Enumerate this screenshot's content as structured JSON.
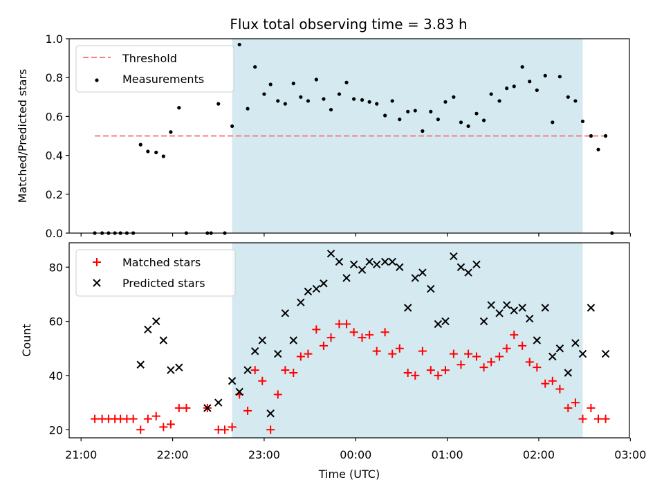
{
  "figure": {
    "title": "Flux total observing time = 3.83 h",
    "xlabel": "Time (UTC)",
    "x_unit": "hours UTC (values beyond 24 fall after midnight)",
    "x_ticks": [
      {
        "value": 21,
        "label": "21:00"
      },
      {
        "value": 22,
        "label": "22:00"
      },
      {
        "value": 23,
        "label": "23:00"
      },
      {
        "value": 24,
        "label": "00:00"
      },
      {
        "value": 25,
        "label": "01:00"
      },
      {
        "value": 26,
        "label": "02:00"
      },
      {
        "value": 27,
        "label": "03:00"
      }
    ],
    "xlim": [
      20.87,
      26.99
    ],
    "observing_window": [
      22.65,
      26.48
    ],
    "colors": {
      "shade": "#d4eaf0",
      "threshold": "#f47f7f",
      "measurements": "#000000",
      "matched": "#ff0000",
      "predicted": "#000000"
    }
  },
  "chart_data": [
    {
      "type": "scatter",
      "panel": "top",
      "ylabel": "Matched/Predicted stars",
      "ylim": [
        0,
        1.0
      ],
      "y_ticks": [
        "0.0",
        "0.2",
        "0.4",
        "0.6",
        "0.8",
        "1.0"
      ],
      "legend_position": "top-left",
      "threshold": {
        "name": "Threshold",
        "value": 0.5,
        "x_range": [
          21.15,
          26.75
        ]
      },
      "series": [
        {
          "name": "Measurements",
          "points": [
            [
              21.15,
              0.0
            ],
            [
              21.23,
              0.0
            ],
            [
              21.3,
              0.0
            ],
            [
              21.37,
              0.0
            ],
            [
              21.43,
              0.0
            ],
            [
              21.5,
              0.0
            ],
            [
              21.57,
              0.0
            ],
            [
              21.65,
              0.455
            ],
            [
              21.73,
              0.42
            ],
            [
              21.82,
              0.415
            ],
            [
              21.9,
              0.395
            ],
            [
              21.98,
              0.52
            ],
            [
              22.07,
              0.645
            ],
            [
              22.15,
              0.0
            ],
            [
              22.38,
              0.0
            ],
            [
              22.42,
              0.0
            ],
            [
              22.5,
              0.665
            ],
            [
              22.57,
              0.0
            ],
            [
              22.65,
              0.55
            ],
            [
              22.73,
              0.97
            ],
            [
              22.82,
              0.64
            ],
            [
              22.9,
              0.855
            ],
            [
              23.0,
              0.715
            ],
            [
              23.07,
              0.765
            ],
            [
              23.15,
              0.68
            ],
            [
              23.23,
              0.665
            ],
            [
              23.32,
              0.77
            ],
            [
              23.4,
              0.7
            ],
            [
              23.48,
              0.68
            ],
            [
              23.57,
              0.79
            ],
            [
              23.65,
              0.69
            ],
            [
              23.73,
              0.635
            ],
            [
              23.82,
              0.715
            ],
            [
              23.9,
              0.775
            ],
            [
              23.98,
              0.69
            ],
            [
              24.07,
              0.685
            ],
            [
              24.15,
              0.675
            ],
            [
              24.23,
              0.665
            ],
            [
              24.32,
              0.605
            ],
            [
              24.4,
              0.68
            ],
            [
              24.48,
              0.585
            ],
            [
              24.57,
              0.625
            ],
            [
              24.65,
              0.63
            ],
            [
              24.73,
              0.525
            ],
            [
              24.82,
              0.625
            ],
            [
              24.9,
              0.585
            ],
            [
              24.98,
              0.675
            ],
            [
              25.07,
              0.7
            ],
            [
              25.15,
              0.57
            ],
            [
              25.23,
              0.55
            ],
            [
              25.32,
              0.615
            ],
            [
              25.4,
              0.58
            ],
            [
              25.48,
              0.715
            ],
            [
              25.57,
              0.68
            ],
            [
              25.65,
              0.745
            ],
            [
              25.73,
              0.755
            ],
            [
              25.82,
              0.855
            ],
            [
              25.9,
              0.78
            ],
            [
              25.98,
              0.735
            ],
            [
              26.07,
              0.81
            ],
            [
              26.15,
              0.57
            ],
            [
              26.23,
              0.805
            ],
            [
              26.32,
              0.7
            ],
            [
              26.4,
              0.68
            ],
            [
              26.48,
              0.575
            ],
            [
              26.57,
              0.5
            ],
            [
              26.65,
              0.43
            ],
            [
              26.73,
              0.5
            ],
            [
              26.8,
              0.0
            ]
          ]
        }
      ]
    },
    {
      "type": "scatter",
      "panel": "bottom",
      "ylabel": "Count",
      "ylim": [
        17,
        89
      ],
      "y_ticks": [
        20,
        40,
        60,
        80
      ],
      "legend_position": "top-left",
      "series": [
        {
          "name": "Matched stars",
          "marker": "plus",
          "points": [
            [
              21.15,
              24
            ],
            [
              21.23,
              24
            ],
            [
              21.3,
              24
            ],
            [
              21.37,
              24
            ],
            [
              21.43,
              24
            ],
            [
              21.5,
              24
            ],
            [
              21.57,
              24
            ],
            [
              21.65,
              20
            ],
            [
              21.73,
              24
            ],
            [
              21.82,
              25
            ],
            [
              21.9,
              21
            ],
            [
              21.98,
              22
            ],
            [
              22.07,
              28
            ],
            [
              22.15,
              28
            ],
            [
              22.38,
              28
            ],
            [
              22.5,
              20
            ],
            [
              22.57,
              20
            ],
            [
              22.65,
              21
            ],
            [
              22.73,
              33
            ],
            [
              22.82,
              27
            ],
            [
              22.9,
              42
            ],
            [
              22.98,
              38
            ],
            [
              23.07,
              20
            ],
            [
              23.15,
              33
            ],
            [
              23.23,
              42
            ],
            [
              23.32,
              41
            ],
            [
              23.4,
              47
            ],
            [
              23.48,
              48
            ],
            [
              23.57,
              57
            ],
            [
              23.65,
              51
            ],
            [
              23.73,
              54
            ],
            [
              23.82,
              59
            ],
            [
              23.9,
              59
            ],
            [
              23.98,
              56
            ],
            [
              24.07,
              54
            ],
            [
              24.15,
              55
            ],
            [
              24.23,
              49
            ],
            [
              24.32,
              56
            ],
            [
              24.4,
              48
            ],
            [
              24.48,
              50
            ],
            [
              24.57,
              41
            ],
            [
              24.65,
              40
            ],
            [
              24.73,
              49
            ],
            [
              24.82,
              42
            ],
            [
              24.9,
              40
            ],
            [
              24.98,
              42
            ],
            [
              25.07,
              48
            ],
            [
              25.15,
              44
            ],
            [
              25.23,
              48
            ],
            [
              25.32,
              47
            ],
            [
              25.4,
              43
            ],
            [
              25.48,
              45
            ],
            [
              25.57,
              47
            ],
            [
              25.65,
              50
            ],
            [
              25.73,
              55
            ],
            [
              25.82,
              51
            ],
            [
              25.9,
              45
            ],
            [
              25.98,
              43
            ],
            [
              26.07,
              37
            ],
            [
              26.15,
              38
            ],
            [
              26.23,
              35
            ],
            [
              26.32,
              28
            ],
            [
              26.4,
              30
            ],
            [
              26.48,
              24
            ],
            [
              26.57,
              28
            ],
            [
              26.65,
              24
            ],
            [
              26.73,
              24
            ]
          ]
        },
        {
          "name": "Predicted stars",
          "marker": "x",
          "points": [
            [
              21.65,
              44
            ],
            [
              21.73,
              57
            ],
            [
              21.82,
              60
            ],
            [
              21.9,
              53
            ],
            [
              21.98,
              42
            ],
            [
              22.07,
              43
            ],
            [
              22.38,
              28
            ],
            [
              22.5,
              30
            ],
            [
              22.65,
              38
            ],
            [
              22.73,
              34
            ],
            [
              22.82,
              42
            ],
            [
              22.9,
              49
            ],
            [
              22.98,
              53
            ],
            [
              23.07,
              26
            ],
            [
              23.15,
              48
            ],
            [
              23.23,
              63
            ],
            [
              23.32,
              53
            ],
            [
              23.4,
              67
            ],
            [
              23.48,
              71
            ],
            [
              23.57,
              72
            ],
            [
              23.65,
              74
            ],
            [
              23.73,
              85
            ],
            [
              23.82,
              82
            ],
            [
              23.9,
              76
            ],
            [
              23.98,
              81
            ],
            [
              24.07,
              79
            ],
            [
              24.15,
              82
            ],
            [
              24.23,
              81
            ],
            [
              24.32,
              82
            ],
            [
              24.4,
              82
            ],
            [
              24.48,
              80
            ],
            [
              24.57,
              65
            ],
            [
              24.65,
              76
            ],
            [
              24.73,
              78
            ],
            [
              24.82,
              72
            ],
            [
              24.9,
              59
            ],
            [
              24.98,
              60
            ],
            [
              25.07,
              84
            ],
            [
              25.15,
              80
            ],
            [
              25.23,
              78
            ],
            [
              25.32,
              81
            ],
            [
              25.4,
              60
            ],
            [
              25.48,
              66
            ],
            [
              25.57,
              63
            ],
            [
              25.65,
              66
            ],
            [
              25.73,
              64
            ],
            [
              25.82,
              65
            ],
            [
              25.9,
              61
            ],
            [
              25.98,
              53
            ],
            [
              26.07,
              65
            ],
            [
              26.15,
              47
            ],
            [
              26.23,
              50
            ],
            [
              26.32,
              41
            ],
            [
              26.4,
              52
            ],
            [
              26.48,
              48
            ],
            [
              26.57,
              65
            ],
            [
              26.73,
              48
            ]
          ]
        }
      ]
    }
  ]
}
